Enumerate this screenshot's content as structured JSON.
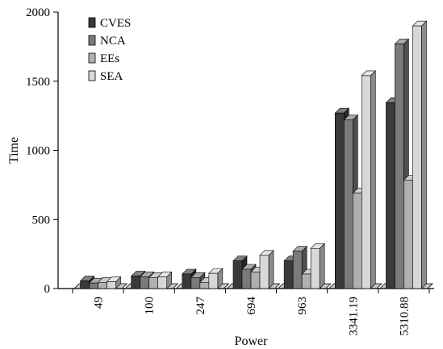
{
  "chart_data": {
    "type": "bar",
    "title": "",
    "xlabel": "Power",
    "ylabel": "Time",
    "categories": [
      "49",
      "100",
      "247",
      "694",
      "963",
      "3341.19",
      "5310.88"
    ],
    "ylim": [
      0,
      2000
    ],
    "yticks": [
      0,
      500,
      1000,
      1500,
      2000
    ],
    "legend_position": "top-left",
    "grid": false,
    "series": [
      {
        "name": "CVES",
        "color": "#3a3a3a",
        "values": [
          55,
          90,
          105,
          200,
          200,
          1270,
          1345
        ]
      },
      {
        "name": "NCA",
        "color": "#7a7a7a",
        "values": [
          40,
          85,
          80,
          140,
          270,
          1220,
          1770
        ]
      },
      {
        "name": "EEs",
        "color": "#b0b0b0",
        "values": [
          45,
          80,
          45,
          120,
          105,
          690,
          785
        ]
      },
      {
        "name": "SEA",
        "color": "#d8d8d8",
        "values": [
          50,
          85,
          110,
          240,
          290,
          1540,
          1900
        ]
      }
    ]
  }
}
